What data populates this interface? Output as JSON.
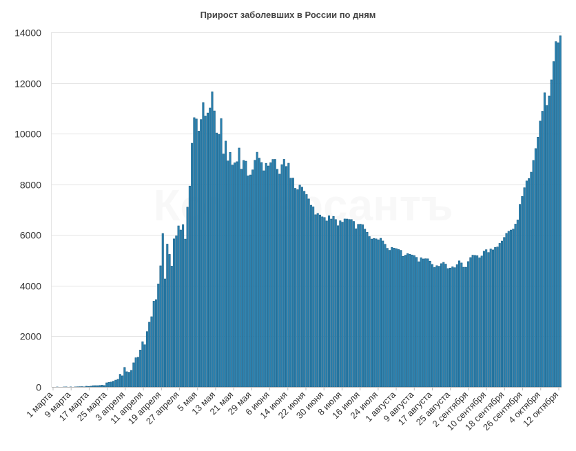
{
  "chart_data": {
    "type": "bar",
    "title": "Прирост заболевших в России по дням",
    "xlabel": "",
    "ylabel": "",
    "ylim": [
      0,
      14000
    ],
    "yticks": [
      0,
      2000,
      4000,
      6000,
      8000,
      10000,
      12000,
      14000
    ],
    "grid": true,
    "watermark": "Коммерсантъ",
    "colors": {
      "bar": "#2b82b0",
      "bar_edge": "#1b5f86"
    },
    "xtick_labels": [
      "1 марта",
      "9 марта",
      "17 марта",
      "25 марта",
      "3 апреля",
      "11 апреля",
      "19 апреля",
      "27 апреля",
      "5 мая",
      "13 мая",
      "21 мая",
      "29 мая",
      "6 июня",
      "14 июня",
      "22 июня",
      "30 июня",
      "8 июля",
      "16 июля",
      "24 июля",
      "1 августа",
      "9 августа",
      "17 августа",
      "25 августа",
      "2 сентября",
      "10 сентября",
      "18 сентября",
      "26 сентября",
      "4 октября",
      "12 октября"
    ],
    "values": [
      0,
      0,
      1,
      0,
      0,
      1,
      4,
      0,
      3,
      0,
      3,
      8,
      11,
      14,
      4,
      30,
      21,
      33,
      52,
      54,
      53,
      61,
      71,
      57,
      163,
      182,
      196,
      228,
      270,
      302,
      501,
      440,
      771,
      601,
      582,
      658,
      954,
      1154,
      1175,
      1459,
      1786,
      1667,
      2186,
      2558,
      2774,
      3388,
      3448,
      4070,
      4785,
      6060,
      4268,
      5642,
      5236,
      4774,
      5849,
      5966,
      6361,
      6198,
      6411,
      5841,
      7099,
      7933,
      9623,
      10633,
      10581,
      10102,
      10559,
      11231,
      10699,
      10817,
      11012,
      11656,
      10899,
      10028,
      9974,
      10598,
      9200,
      9709,
      8926,
      9263,
      8764,
      8849,
      8894,
      9434,
      8599,
      8946,
      8915,
      8338,
      8371,
      8572,
      8952,
      9268,
      9035,
      8863,
      8536,
      8831,
      8726,
      8855,
      8984,
      8985,
      8595,
      8404,
      8779,
      8987,
      8706,
      8835,
      8246,
      8248,
      7843,
      7790,
      7972,
      7889,
      7728,
      7600,
      7425,
      7176,
      7113,
      6800,
      6852,
      6791,
      6719,
      6693,
      6556,
      6760,
      6632,
      6736,
      6611,
      6368,
      6562,
      6509,
      6635,
      6632,
      6615,
      6611,
      6537,
      6248,
      6422,
      6428,
      6406,
      6234,
      6109,
      5940,
      5842,
      5862,
      5848,
      5811,
      5871,
      5765,
      5635,
      5475,
      5395,
      5509,
      5482,
      5462,
      5427,
      5394,
      5159,
      5204,
      5267,
      5241,
      5212,
      5189,
      5118,
      4945,
      5102,
      5057,
      5065,
      5061,
      4969,
      4839,
      4718,
      4790,
      4767,
      4870,
      4921,
      4852,
      4676,
      4696,
      4744,
      4711,
      4829,
      4980,
      4897,
      4729,
      4729,
      4952,
      5110,
      5205,
      5195,
      5185,
      5099,
      5172,
      5363,
      5421,
      5310,
      5449,
      5413,
      5509,
      5529,
      5670,
      5762,
      5905,
      6065,
      6148,
      6196,
      6234,
      6431,
      6595,
      7212,
      7523,
      7867,
      8135,
      8232,
      8481,
      8945,
      9412,
      9859,
      10499,
      10888,
      11615,
      11115,
      11493,
      12126,
      12846,
      13634,
      13592,
      13868
    ]
  }
}
